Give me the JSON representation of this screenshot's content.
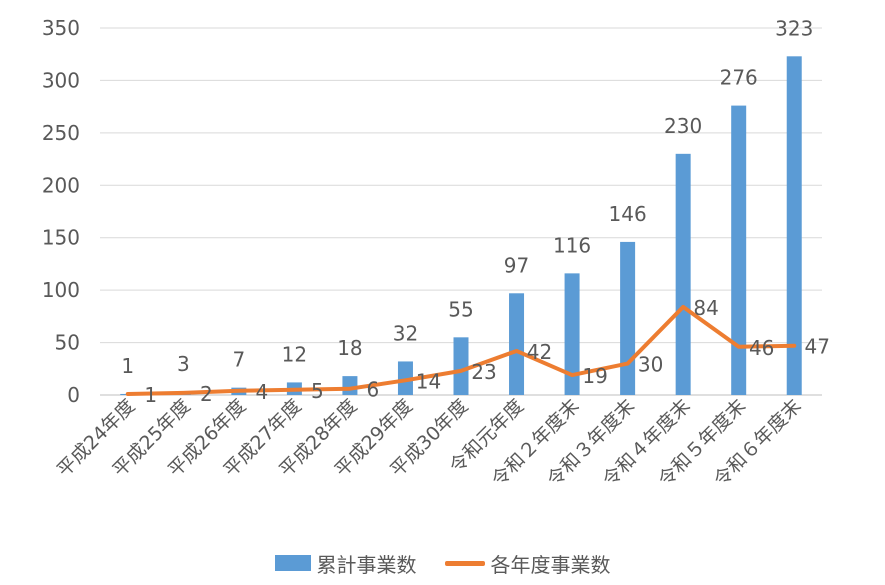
{
  "chart_data": {
    "type": "bar",
    "categories": [
      "平成24年度",
      "平成25年度",
      "平成26年度",
      "平成27年度",
      "平成28年度",
      "平成29年度",
      "平成30年度",
      "令和元年度",
      "令和２年度末",
      "令和３年度末",
      "令和４年度末",
      "令和５年度末",
      "令和６年度末"
    ],
    "series": [
      {
        "name": "累計事業数",
        "type": "bar",
        "color": "#5B9BD5",
        "values": [
          1,
          3,
          7,
          12,
          18,
          32,
          55,
          97,
          116,
          146,
          230,
          276,
          323
        ]
      },
      {
        "name": "各年度事業数",
        "type": "line",
        "color": "#ED7D31",
        "values": [
          1,
          2,
          4,
          5,
          6,
          14,
          23,
          42,
          19,
          30,
          84,
          46,
          47
        ]
      }
    ],
    "ylim": [
      0,
      350
    ],
    "yticks": [
      0,
      50,
      100,
      150,
      200,
      250,
      300,
      350
    ],
    "grid": true,
    "legend_position": "bottom"
  }
}
